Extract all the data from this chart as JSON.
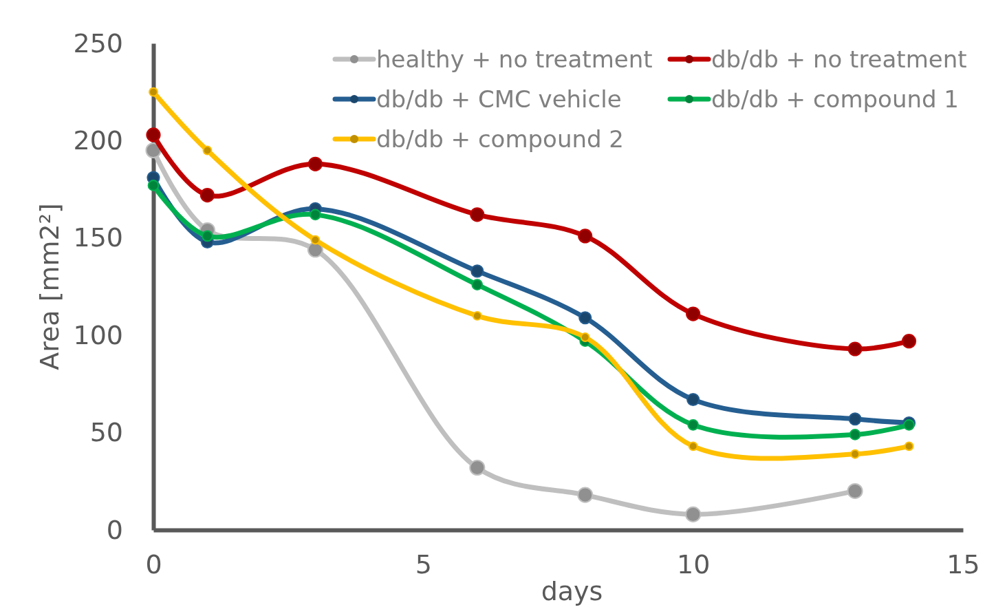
{
  "chart_data": {
    "type": "line",
    "xlabel": "days",
    "ylabel": "Area [mm2²]",
    "x": [
      0,
      1,
      3,
      6,
      8,
      10,
      13,
      14
    ],
    "xlim": [
      0,
      15
    ],
    "xticks": [
      0,
      5,
      10,
      15
    ],
    "ylim": [
      0,
      250
    ],
    "yticks": [
      0,
      50,
      100,
      150,
      200,
      250
    ],
    "grid": false,
    "legend": "top right",
    "marker": "circle",
    "line_style": "solid",
    "series": [
      {
        "name": "healthy + no treatment",
        "color": "#bfbfbf",
        "values": [
          195,
          154,
          144,
          32,
          18,
          8,
          20,
          null
        ]
      },
      {
        "name": "db/db + no treatment",
        "color": "#c00000",
        "values": [
          203,
          172,
          188,
          162,
          151,
          111,
          93,
          97
        ]
      },
      {
        "name": "db/db + CMC vehicle",
        "color": "#255e91",
        "values": [
          181,
          148,
          165,
          133,
          109,
          67,
          57,
          55
        ]
      },
      {
        "name": "db/db + compound 1",
        "color": "#00b050",
        "values": [
          177,
          151,
          162,
          126,
          97,
          54,
          49,
          54
        ]
      },
      {
        "name": "db/db + compound 2",
        "color": "#ffc000",
        "values": [
          225,
          195,
          149,
          110,
          99,
          43,
          39,
          43
        ]
      }
    ]
  }
}
